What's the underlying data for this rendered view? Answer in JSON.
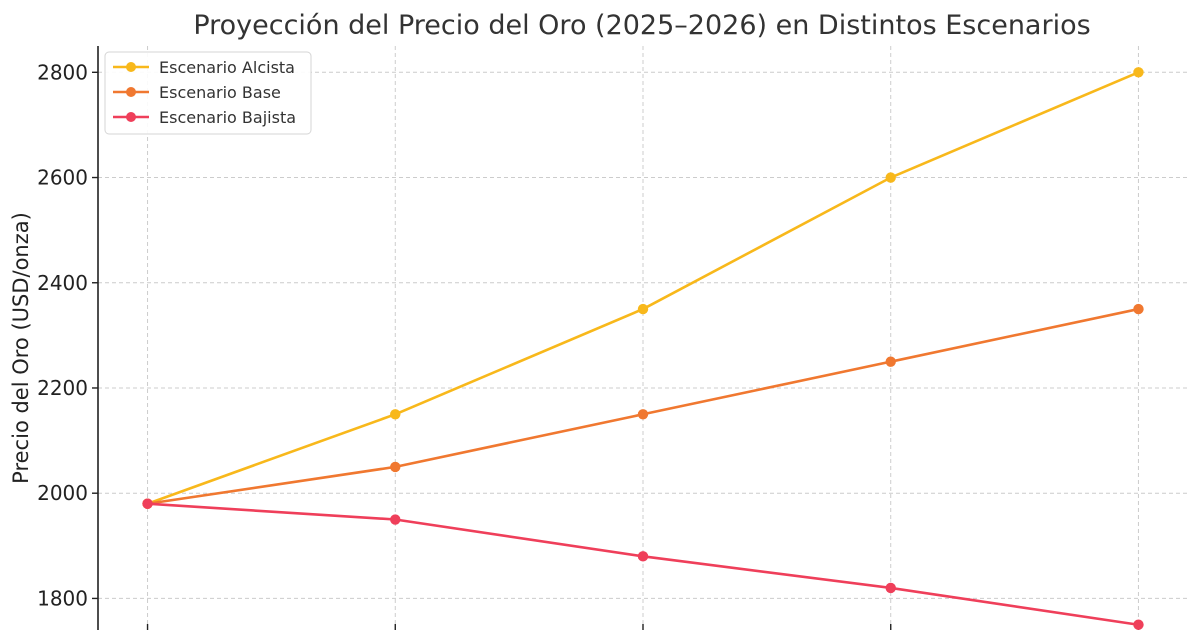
{
  "chart_data": {
    "type": "line",
    "title": "Proyección del Precio del Oro (2025–2026) en Distintos Escenarios",
    "xlabel": "",
    "ylabel": "Precio del Oro (USD/onza)",
    "x": [
      0,
      1,
      2,
      3,
      4
    ],
    "xlim": [
      -0.2,
      4.2
    ],
    "ylim": [
      1740,
      2850
    ],
    "yticks": [
      1800,
      2000,
      2200,
      2400,
      2600,
      2800
    ],
    "grid": true,
    "legend_position": "top-left",
    "series": [
      {
        "name": "Escenario Alcista",
        "color": "#f8b81b",
        "values": [
          1980,
          2150,
          2350,
          2600,
          2800
        ]
      },
      {
        "name": "Escenario Base",
        "color": "#f07830",
        "values": [
          1980,
          2050,
          2150,
          2250,
          2350
        ]
      },
      {
        "name": "Escenario Bajista",
        "color": "#ef3f5a",
        "values": [
          1980,
          1950,
          1880,
          1820,
          1750
        ]
      }
    ]
  }
}
